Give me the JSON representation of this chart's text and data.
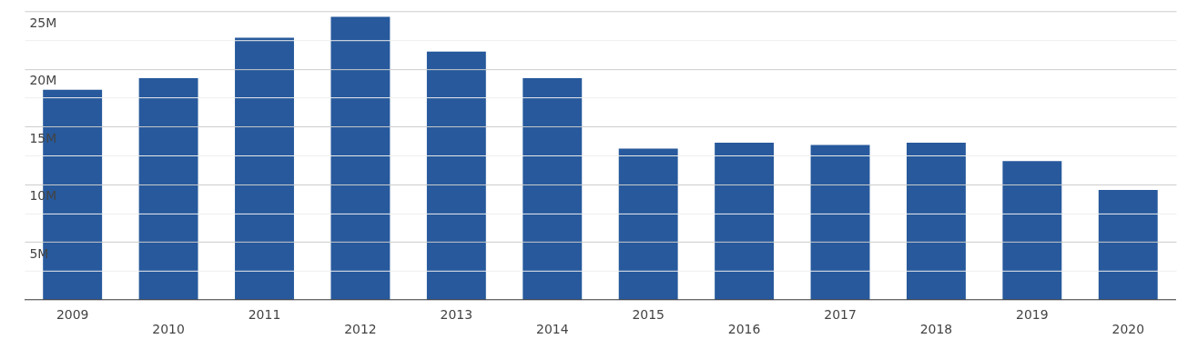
{
  "chart_data": {
    "type": "bar",
    "categories": [
      "2009",
      "2010",
      "2011",
      "2012",
      "2013",
      "2014",
      "2015",
      "2016",
      "2017",
      "2018",
      "2019",
      "2020"
    ],
    "values": [
      18.2,
      19.2,
      22.7,
      24.5,
      21.5,
      19.2,
      13.1,
      13.6,
      13.4,
      13.6,
      12.0,
      9.5
    ],
    "color": "#27599c",
    "ylim": [
      0,
      25
    ],
    "yticks": [
      {
        "value": 2.5,
        "label": null
      },
      {
        "value": 5,
        "label": "5M"
      },
      {
        "value": 7.5,
        "label": null
      },
      {
        "value": 10,
        "label": "10M"
      },
      {
        "value": 12.5,
        "label": null
      },
      {
        "value": 15,
        "label": "15M"
      },
      {
        "value": 17.5,
        "label": null
      },
      {
        "value": 20,
        "label": "20M"
      },
      {
        "value": 22.5,
        "label": null
      },
      {
        "value": 25,
        "label": "25M"
      }
    ],
    "grid": "y"
  }
}
